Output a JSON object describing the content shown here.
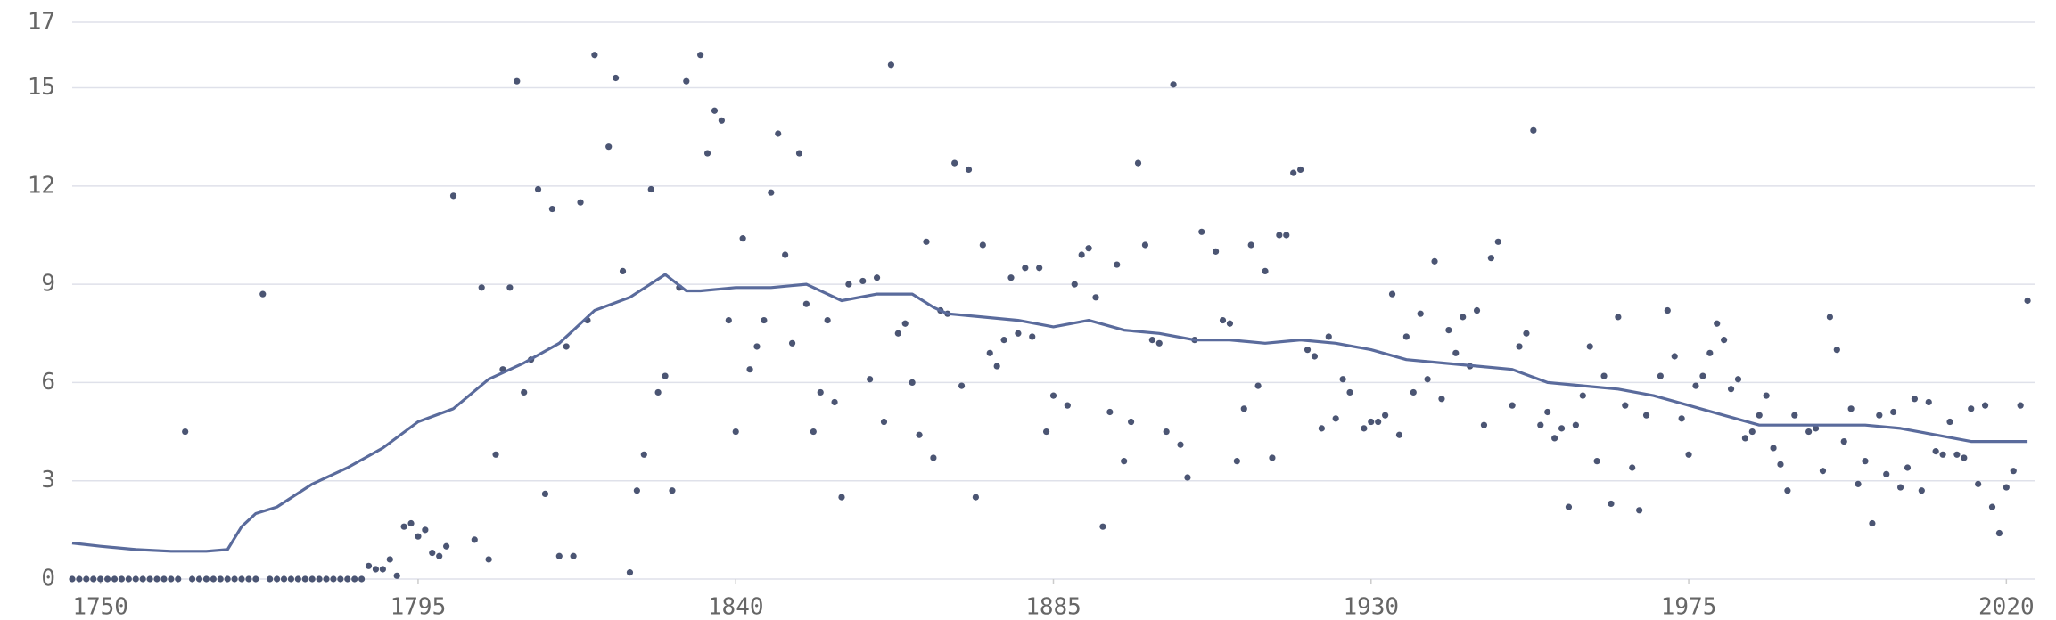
{
  "chart_data": {
    "type": "scatter",
    "color": "#4b5573",
    "grid": true,
    "xlim": [
      1746,
      2024
    ],
    "xticks": [
      1750,
      1795,
      1840,
      1885,
      1930,
      1975,
      2020
    ],
    "ylim": [
      0,
      17
    ],
    "yticks": [
      0,
      3,
      6,
      9,
      12,
      15,
      17
    ],
    "x": [
      1746,
      1747,
      1748,
      1749,
      1750,
      1751,
      1752,
      1753,
      1754,
      1755,
      1756,
      1757,
      1758,
      1759,
      1760,
      1761,
      1762,
      1763,
      1764,
      1765,
      1766,
      1767,
      1768,
      1769,
      1770,
      1771,
      1772,
      1773,
      1774,
      1775,
      1776,
      1777,
      1778,
      1779,
      1780,
      1781,
      1782,
      1783,
      1784,
      1785,
      1786,
      1787,
      1788,
      1789,
      1790,
      1791,
      1792,
      1793,
      1794,
      1795,
      1796,
      1797,
      1798,
      1799,
      1800,
      1801,
      1802,
      1803,
      1804,
      1805,
      1806,
      1807,
      1808,
      1809,
      1810,
      1811,
      1812,
      1813,
      1814,
      1815,
      1816,
      1817,
      1818,
      1819,
      1820,
      1821,
      1822,
      1823,
      1824,
      1825,
      1826,
      1827,
      1828,
      1829,
      1830,
      1831,
      1832,
      1833,
      1834,
      1835,
      1836,
      1837,
      1838,
      1839,
      1840,
      1841,
      1842,
      1843,
      1844,
      1845,
      1846,
      1847,
      1848,
      1849,
      1850,
      1851,
      1852,
      1853,
      1854,
      1855,
      1856,
      1857,
      1858,
      1859,
      1860,
      1861,
      1862,
      1863,
      1864,
      1865,
      1866,
      1867,
      1868,
      1869,
      1870,
      1871,
      1872,
      1873,
      1874,
      1875,
      1876,
      1877,
      1878,
      1879,
      1880,
      1881,
      1882,
      1883,
      1884,
      1885,
      1886,
      1887,
      1888,
      1889,
      1890,
      1891,
      1892,
      1893,
      1894,
      1895,
      1896,
      1897,
      1898,
      1899,
      1900,
      1901,
      1902,
      1903,
      1904,
      1905,
      1906,
      1907,
      1908,
      1909,
      1910,
      1911,
      1912,
      1913,
      1914,
      1915,
      1916,
      1917,
      1918,
      1919,
      1920,
      1921,
      1922,
      1923,
      1924,
      1925,
      1926,
      1927,
      1928,
      1929,
      1930,
      1931,
      1932,
      1933,
      1934,
      1935,
      1936,
      1937,
      1938,
      1939,
      1940,
      1941,
      1942,
      1943,
      1944,
      1945,
      1946,
      1947,
      1948,
      1949,
      1950,
      1951,
      1952,
      1953,
      1954,
      1955,
      1956,
      1957,
      1958,
      1959,
      1960,
      1961,
      1962,
      1963,
      1964,
      1965,
      1966,
      1967,
      1968,
      1969,
      1970,
      1971,
      1972,
      1973,
      1974,
      1975,
      1976,
      1977,
      1978,
      1979,
      1980,
      1981,
      1982,
      1983,
      1984,
      1985,
      1986,
      1987,
      1988,
      1989,
      1990,
      1991,
      1992,
      1993,
      1994,
      1995,
      1996,
      1997,
      1998,
      1999,
      2000,
      2001,
      2002,
      2003,
      2004,
      2005,
      2006,
      2007,
      2008,
      2009,
      2010,
      2011,
      2012,
      2013,
      2014,
      2015,
      2016,
      2017,
      2018,
      2019,
      2020,
      2021,
      2022,
      2023
    ],
    "values": [
      0,
      0,
      0,
      0,
      0,
      0,
      0,
      0,
      0,
      0,
      0,
      0,
      0,
      0,
      0,
      0,
      4.5,
      0,
      0,
      0,
      0,
      0,
      0,
      0,
      0,
      0,
      0,
      8.7,
      0,
      0,
      0,
      0,
      0,
      0,
      0,
      0,
      0,
      0,
      0,
      0,
      0,
      0,
      0.4,
      0.3,
      0.3,
      0.6,
      0.1,
      1.6,
      1.7,
      1.3,
      1.5,
      0.8,
      0.7,
      1.0,
      11.7,
      null,
      null,
      1.2,
      8.9,
      0.6,
      3.8,
      6.4,
      8.9,
      15.2,
      5.7,
      6.7,
      11.9,
      2.6,
      11.3,
      0.7,
      7.1,
      0.7,
      11.5,
      7.9,
      16,
      null,
      13.2,
      15.3,
      9.4,
      0.2,
      2.7,
      3.8,
      11.9,
      5.7,
      6.2,
      2.7,
      8.9,
      15.2,
      null,
      16,
      13,
      14.3,
      14,
      7.9,
      4.5,
      10.4,
      6.4,
      7.1,
      7.9,
      11.8,
      13.6,
      9.9,
      7.2,
      13,
      8.4,
      4.5,
      5.7,
      7.9,
      5.4,
      2.5,
      9,
      null,
      9.1,
      6.1,
      9.2,
      4.8,
      15.7,
      7.5,
      7.8,
      6,
      4.4,
      10.3,
      3.7,
      8.2,
      8.1,
      12.7,
      5.9,
      12.5,
      2.5,
      10.2,
      6.9,
      6.5,
      7.3,
      9.2,
      7.5,
      9.5,
      7.4,
      9.5,
      4.5,
      5.6,
      null,
      5.3,
      9.0,
      9.9,
      10.1,
      8.6,
      1.6,
      5.1,
      9.6,
      3.6,
      4.8,
      12.7,
      10.2,
      7.3,
      7.2,
      4.5,
      15.1,
      4.1,
      3.1,
      7.3,
      10.6,
      null,
      10.0,
      7.9,
      7.8,
      3.6,
      5.2,
      10.2,
      5.9,
      9.4,
      3.7,
      10.5,
      10.5,
      12.4,
      12.5,
      7.0,
      6.8,
      4.6,
      7.4,
      4.9,
      6.1,
      5.7,
      null,
      4.6,
      4.8,
      4.8,
      5.0,
      8.7,
      4.4,
      7.4,
      5.7,
      8.1,
      6.1,
      9.7,
      5.5,
      7.6,
      6.9,
      8.0,
      6.5,
      8.2,
      4.7,
      9.8,
      10.3,
      null,
      5.3,
      7.1,
      7.5,
      13.7,
      4.7,
      5.1,
      4.3,
      4.6,
      2.2,
      4.7,
      5.6,
      7.1,
      3.6,
      6.2,
      2.3,
      8.0,
      5.3,
      3.4,
      2.1,
      5.0,
      null,
      6.2,
      8.2,
      6.8,
      4.9,
      3.8,
      5.9,
      6.2,
      6.9,
      7.8,
      7.3,
      5.8,
      6.1,
      4.3,
      4.5,
      5.0,
      5.6,
      4.0,
      3.5,
      2.7,
      5.0,
      null,
      4.5,
      4.6,
      3.3,
      8.0,
      7.0,
      4.2,
      5.2,
      2.9,
      3.6,
      1.7,
      5.0,
      3.2,
      5.1,
      2.8,
      3.4,
      5.5,
      2.7,
      5.4,
      3.9,
      3.8,
      4.8,
      3.8,
      3.7,
      5.2,
      2.9,
      5.3,
      2.2,
      1.4,
      2.8,
      3.3,
      5.3,
      8.5
    ],
    "trend": {
      "type": "line",
      "color": "#5a6b9c",
      "x": [
        1746,
        1750,
        1755,
        1760,
        1765,
        1768,
        1770,
        1772,
        1775,
        1780,
        1785,
        1790,
        1795,
        1800,
        1805,
        1810,
        1815,
        1820,
        1825,
        1830,
        1833,
        1835,
        1840,
        1845,
        1850,
        1855,
        1860,
        1865,
        1868,
        1870,
        1875,
        1880,
        1885,
        1890,
        1895,
        1900,
        1905,
        1910,
        1915,
        1920,
        1925,
        1930,
        1935,
        1940,
        1945,
        1950,
        1955,
        1960,
        1965,
        1970,
        1975,
        1980,
        1985,
        1990,
        1995,
        2000,
        2005,
        2010,
        2015,
        2020,
        2023
      ],
      "values": [
        1.1,
        1.0,
        0.9,
        0.85,
        0.85,
        0.9,
        1.6,
        2.0,
        2.2,
        2.9,
        3.4,
        4.0,
        4.8,
        5.2,
        6.1,
        6.6,
        7.2,
        8.2,
        8.6,
        9.3,
        8.8,
        8.8,
        8.9,
        8.9,
        9.0,
        8.5,
        8.7,
        8.7,
        8.3,
        8.1,
        8.0,
        7.9,
        7.7,
        7.9,
        7.6,
        7.5,
        7.3,
        7.3,
        7.2,
        7.3,
        7.2,
        7.0,
        6.7,
        6.6,
        6.5,
        6.4,
        6.0,
        5.9,
        5.8,
        5.6,
        5.3,
        5.0,
        4.7,
        4.7,
        4.7,
        4.7,
        4.6,
        4.4,
        4.2,
        4.2,
        4.2
      ]
    }
  }
}
